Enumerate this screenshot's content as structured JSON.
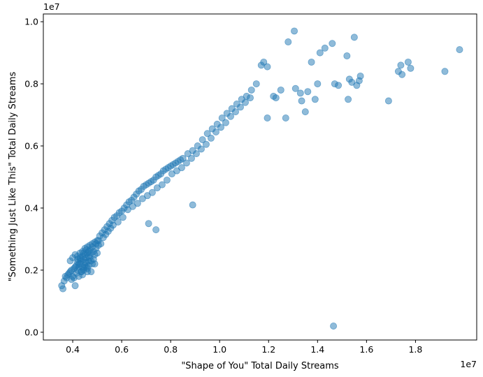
{
  "chart_data": {
    "type": "scatter",
    "title": "",
    "xlabel": "\"Shape of You\" Total Daily Streams",
    "ylabel": "\"Something Just Like This\" Total Daily Streams",
    "x_offset_label": "1e7",
    "y_offset_label": "1e7",
    "xlim": [
      2.8,
      20.5
    ],
    "ylim": [
      -0.25,
      10.25
    ],
    "x_ticks": [
      0.4,
      0.6,
      0.8,
      1.0,
      1.2,
      1.4,
      1.6,
      1.8
    ],
    "x_tick_labels": [
      "0.4",
      "0.6",
      "0.8",
      "1.0",
      "1.2",
      "1.4",
      "1.6",
      "1.8"
    ],
    "y_ticks": [
      0.0,
      0.2,
      0.4,
      0.6,
      0.8,
      1.0
    ],
    "y_tick_labels": [
      "0.0",
      "0.2",
      "0.4",
      "0.6",
      "0.8",
      "1.0"
    ],
    "grid": false,
    "marker_color": "#1f77b4",
    "marker_alpha": 0.5,
    "units": "1e7 streams",
    "points": [
      [
        3.55,
        1.5
      ],
      [
        3.6,
        1.4
      ],
      [
        3.65,
        1.65
      ],
      [
        3.7,
        1.8
      ],
      [
        3.75,
        1.75
      ],
      [
        3.8,
        1.85
      ],
      [
        3.85,
        1.9
      ],
      [
        3.9,
        1.95
      ],
      [
        3.95,
        1.7
      ],
      [
        4.0,
        1.8
      ],
      [
        4.05,
        1.75
      ],
      [
        4.1,
        1.5
      ],
      [
        4.15,
        1.9
      ],
      [
        4.2,
        2.0
      ],
      [
        4.25,
        2.1
      ],
      [
        4.3,
        2.2
      ],
      [
        4.35,
        1.95
      ],
      [
        4.4,
        1.85
      ],
      [
        4.45,
        2.05
      ],
      [
        4.5,
        2.15
      ],
      [
        4.55,
        2.25
      ],
      [
        4.6,
        1.95
      ],
      [
        4.65,
        2.3
      ],
      [
        4.7,
        2.4
      ],
      [
        4.8,
        2.2
      ],
      [
        4.9,
        2.5
      ],
      [
        5.0,
        2.55
      ],
      [
        3.9,
        2.3
      ],
      [
        4.0,
        2.4
      ],
      [
        4.1,
        2.5
      ],
      [
        4.2,
        2.45
      ],
      [
        4.3,
        2.55
      ],
      [
        4.4,
        2.6
      ],
      [
        4.5,
        2.7
      ],
      [
        4.6,
        2.75
      ],
      [
        4.7,
        2.8
      ],
      [
        4.8,
        2.85
      ],
      [
        4.9,
        2.9
      ],
      [
        5.0,
        2.95
      ],
      [
        5.1,
        3.1
      ],
      [
        5.2,
        3.2
      ],
      [
        5.3,
        3.3
      ],
      [
        5.4,
        3.4
      ],
      [
        5.5,
        3.5
      ],
      [
        5.6,
        3.6
      ],
      [
        5.7,
        3.7
      ],
      [
        5.8,
        3.75
      ],
      [
        5.9,
        3.85
      ],
      [
        6.0,
        3.9
      ],
      [
        6.1,
        4.0
      ],
      [
        6.2,
        4.1
      ],
      [
        6.3,
        4.2
      ],
      [
        6.4,
        4.25
      ],
      [
        6.5,
        4.35
      ],
      [
        6.6,
        4.45
      ],
      [
        6.7,
        4.55
      ],
      [
        6.8,
        4.6
      ],
      [
        6.9,
        4.7
      ],
      [
        7.0,
        4.75
      ],
      [
        7.1,
        4.8
      ],
      [
        7.2,
        4.85
      ],
      [
        7.3,
        4.9
      ],
      [
        7.4,
        5.0
      ],
      [
        7.5,
        5.05
      ],
      [
        7.6,
        5.1
      ],
      [
        7.7,
        5.2
      ],
      [
        7.8,
        5.25
      ],
      [
        7.9,
        5.3
      ],
      [
        8.0,
        5.35
      ],
      [
        8.1,
        5.4
      ],
      [
        8.2,
        5.45
      ],
      [
        8.3,
        5.5
      ],
      [
        8.4,
        5.55
      ],
      [
        8.5,
        5.6
      ],
      [
        8.7,
        5.75
      ],
      [
        8.9,
        5.85
      ],
      [
        9.1,
        6.0
      ],
      [
        9.3,
        6.2
      ],
      [
        9.5,
        6.4
      ],
      [
        9.7,
        6.55
      ],
      [
        9.9,
        6.7
      ],
      [
        10.1,
        6.9
      ],
      [
        10.3,
        7.05
      ],
      [
        10.5,
        7.2
      ],
      [
        10.7,
        7.35
      ],
      [
        10.9,
        7.5
      ],
      [
        11.1,
        7.6
      ],
      [
        11.3,
        7.8
      ],
      [
        11.5,
        8.0
      ],
      [
        11.7,
        8.6
      ],
      [
        11.8,
        8.7
      ],
      [
        11.95,
        8.55
      ],
      [
        4.25,
        2.2
      ],
      [
        4.35,
        2.3
      ],
      [
        4.45,
        2.35
      ],
      [
        4.55,
        2.4
      ],
      [
        4.65,
        2.45
      ],
      [
        4.75,
        2.55
      ],
      [
        4.85,
        2.6
      ],
      [
        4.95,
        2.7
      ],
      [
        5.05,
        2.8
      ],
      [
        5.15,
        2.85
      ],
      [
        4.15,
        2.15
      ],
      [
        4.05,
        2.05
      ],
      [
        3.95,
        2.0
      ],
      [
        4.2,
        2.25
      ],
      [
        4.3,
        2.35
      ],
      [
        4.4,
        2.45
      ],
      [
        4.5,
        2.5
      ],
      [
        4.6,
        2.55
      ],
      [
        4.7,
        2.65
      ],
      [
        4.8,
        2.75
      ],
      [
        4.95,
        2.85
      ],
      [
        5.05,
        2.95
      ],
      [
        5.25,
        3.05
      ],
      [
        5.35,
        3.15
      ],
      [
        5.45,
        3.25
      ],
      [
        5.55,
        3.35
      ],
      [
        5.65,
        3.45
      ],
      [
        5.85,
        3.55
      ],
      [
        6.05,
        3.7
      ],
      [
        6.25,
        3.95
      ],
      [
        6.45,
        4.05
      ],
      [
        6.65,
        4.15
      ],
      [
        6.85,
        4.3
      ],
      [
        7.05,
        4.4
      ],
      [
        7.25,
        4.5
      ],
      [
        7.45,
        4.65
      ],
      [
        7.65,
        4.75
      ],
      [
        7.85,
        4.9
      ],
      [
        8.05,
        5.1
      ],
      [
        8.25,
        5.2
      ],
      [
        8.45,
        5.3
      ],
      [
        8.65,
        5.45
      ],
      [
        8.85,
        5.6
      ],
      [
        9.05,
        5.75
      ],
      [
        9.25,
        5.9
      ],
      [
        9.45,
        6.05
      ],
      [
        9.65,
        6.25
      ],
      [
        9.85,
        6.45
      ],
      [
        10.05,
        6.6
      ],
      [
        10.25,
        6.75
      ],
      [
        10.45,
        6.95
      ],
      [
        10.65,
        7.1
      ],
      [
        10.85,
        7.25
      ],
      [
        11.05,
        7.4
      ],
      [
        11.25,
        7.55
      ],
      [
        12.2,
        7.6
      ],
      [
        12.3,
        7.55
      ],
      [
        12.5,
        7.8
      ],
      [
        12.8,
        9.35
      ],
      [
        13.05,
        9.7
      ],
      [
        13.1,
        7.85
      ],
      [
        13.3,
        7.7
      ],
      [
        13.35,
        7.45
      ],
      [
        13.6,
        7.75
      ],
      [
        13.75,
        8.7
      ],
      [
        13.9,
        7.5
      ],
      [
        14.0,
        8.0
      ],
      [
        14.1,
        9.0
      ],
      [
        14.3,
        9.15
      ],
      [
        14.6,
        9.3
      ],
      [
        14.7,
        8.0
      ],
      [
        14.85,
        7.95
      ],
      [
        15.2,
        8.9
      ],
      [
        15.25,
        7.5
      ],
      [
        15.3,
        8.15
      ],
      [
        15.4,
        8.05
      ],
      [
        15.5,
        9.5
      ],
      [
        15.6,
        7.95
      ],
      [
        15.7,
        8.1
      ],
      [
        15.75,
        8.25
      ],
      [
        16.9,
        7.45
      ],
      [
        17.3,
        8.4
      ],
      [
        17.4,
        8.6
      ],
      [
        17.45,
        8.3
      ],
      [
        17.7,
        8.7
      ],
      [
        17.8,
        8.5
      ],
      [
        19.2,
        8.4
      ],
      [
        19.8,
        9.1
      ],
      [
        11.95,
        6.9
      ],
      [
        12.7,
        6.9
      ],
      [
        13.5,
        7.1
      ],
      [
        7.1,
        3.5
      ],
      [
        7.4,
        3.3
      ],
      [
        8.9,
        4.1
      ],
      [
        14.65,
        0.2
      ],
      [
        4.25,
        1.8
      ],
      [
        4.35,
        1.95
      ],
      [
        4.45,
        2.0
      ],
      [
        4.55,
        2.1
      ],
      [
        4.65,
        2.15
      ],
      [
        4.75,
        2.3
      ],
      [
        4.85,
        2.35
      ],
      [
        4.4,
        2.1
      ],
      [
        4.5,
        2.25
      ],
      [
        4.1,
        2.1
      ],
      [
        4.6,
        2.05
      ],
      [
        4.75,
        1.95
      ],
      [
        4.9,
        2.2
      ],
      [
        4.3,
        2.4
      ],
      [
        4.2,
        2.35
      ],
      [
        4.45,
        2.55
      ],
      [
        4.55,
        2.65
      ],
      [
        4.65,
        2.6
      ]
    ]
  }
}
